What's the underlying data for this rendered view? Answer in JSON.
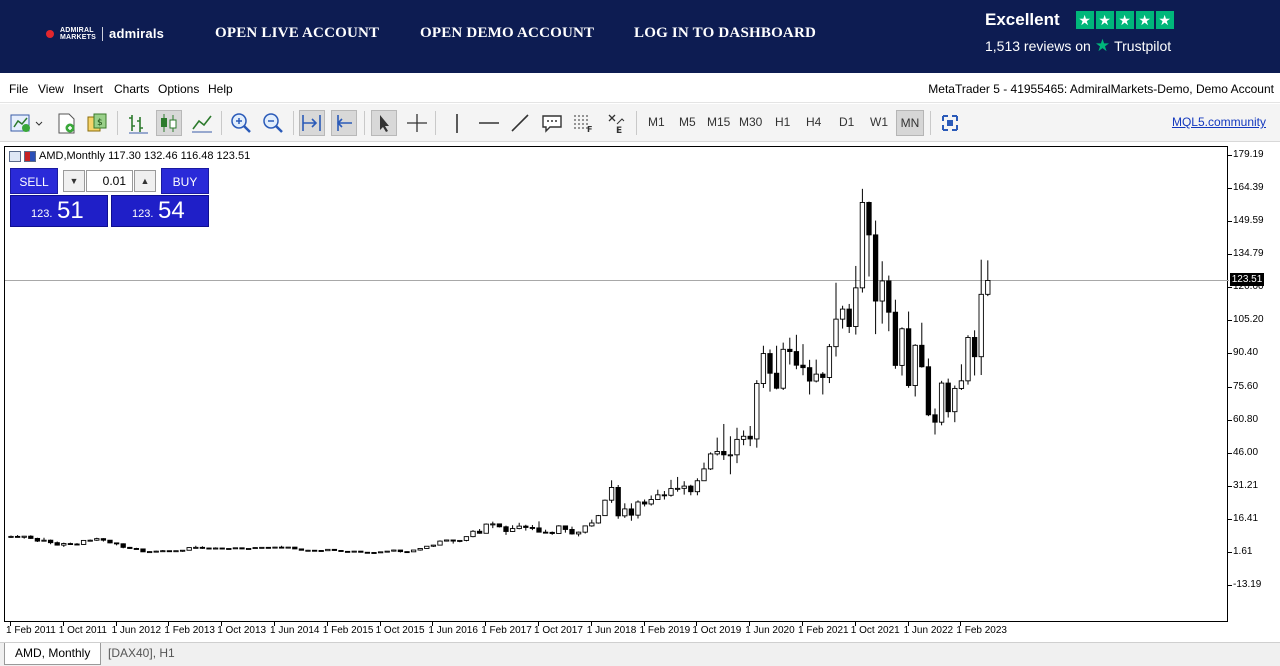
{
  "banner": {
    "logo_small_line1": "ADMIRAL",
    "logo_small_line2": "MARKETS",
    "logo_name": "admirals",
    "nav": [
      "OPEN LIVE ACCOUNT",
      "OPEN DEMO ACCOUNT",
      "LOG IN TO DASHBOARD"
    ],
    "trustpilot": {
      "rating_word": "Excellent",
      "reviews": "1,513 reviews on",
      "brand": "Trustpilot",
      "stars": 5
    },
    "bg_color": "#0d1c52"
  },
  "menu": {
    "items": [
      "File",
      "View",
      "Insert",
      "Charts",
      "Options",
      "Help"
    ],
    "terminal_title": "MetaTrader 5 - 41955465: AdmiralMarkets-Demo, Demo Account"
  },
  "toolbar": {
    "timeframes": [
      "M1",
      "M5",
      "M15",
      "M30",
      "H1",
      "H4",
      "D1",
      "W1",
      "MN"
    ],
    "selected_timeframe": "MN",
    "community_link": "MQL5.community"
  },
  "chart": {
    "header": "AMD,Monthly  117.30 132.46 116.48 123.51",
    "trade": {
      "sell_label": "SELL",
      "buy_label": "BUY",
      "volume": "0.01",
      "bid_prefix": "123.",
      "bid_big": "51",
      "ask_prefix": "123.",
      "ask_big": "54"
    },
    "current_price_label": "123.51",
    "price_axis": [
      "179.19",
      "164.39",
      "149.59",
      "134.79",
      "120.00",
      "105.20",
      "90.40",
      "75.60",
      "60.80",
      "46.00",
      "31.21",
      "16.41",
      "1.61",
      "-13.19"
    ],
    "date_axis": [
      "1 Feb 2011",
      "1 Oct 2011",
      "1 Jun 2012",
      "1 Feb 2013",
      "1 Oct 2013",
      "1 Jun 2014",
      "1 Feb 2015",
      "1 Oct 2015",
      "1 Jun 2016",
      "1 Feb 2017",
      "1 Oct 2017",
      "1 Jun 2018",
      "1 Feb 2019",
      "1 Oct 2019",
      "1 Jun 2020",
      "1 Feb 2021",
      "1 Oct 2021",
      "1 Jun 2022",
      "1 Feb 2023"
    ]
  },
  "chart_data": {
    "type": "candlestick",
    "symbol": "AMD",
    "timeframe": "Monthly",
    "y_range": [
      -13.19,
      179.19
    ],
    "current_price": 123.51,
    "ohlc": [
      {
        "d": "2011-02",
        "o": 8.9,
        "h": 9.4,
        "l": 8.4,
        "c": 9.0
      },
      {
        "d": "2011-03",
        "o": 9.0,
        "h": 9.6,
        "l": 8.5,
        "c": 8.6
      },
      {
        "d": "2011-04",
        "o": 8.6,
        "h": 9.2,
        "l": 8.0,
        "c": 9.1
      },
      {
        "d": "2011-05",
        "o": 9.1,
        "h": 9.5,
        "l": 7.9,
        "c": 8.1
      },
      {
        "d": "2011-06",
        "o": 8.1,
        "h": 8.4,
        "l": 6.5,
        "c": 6.9
      },
      {
        "d": "2011-07",
        "o": 6.9,
        "h": 8.4,
        "l": 6.7,
        "c": 7.3
      },
      {
        "d": "2011-08",
        "o": 7.3,
        "h": 7.6,
        "l": 5.5,
        "c": 6.2
      },
      {
        "d": "2011-09",
        "o": 6.2,
        "h": 6.7,
        "l": 4.9,
        "c": 5.1
      },
      {
        "d": "2011-10",
        "o": 5.1,
        "h": 6.2,
        "l": 4.3,
        "c": 5.8
      },
      {
        "d": "2011-11",
        "o": 5.8,
        "h": 6.2,
        "l": 5.2,
        "c": 5.6
      },
      {
        "d": "2011-12",
        "o": 5.6,
        "h": 6.0,
        "l": 5.2,
        "c": 5.4
      },
      {
        "d": "2012-01",
        "o": 5.4,
        "h": 7.4,
        "l": 5.3,
        "c": 7.2
      },
      {
        "d": "2012-02",
        "o": 7.2,
        "h": 7.6,
        "l": 6.7,
        "c": 7.3
      },
      {
        "d": "2012-03",
        "o": 7.3,
        "h": 8.4,
        "l": 7.0,
        "c": 8.0
      },
      {
        "d": "2012-04",
        "o": 8.0,
        "h": 8.2,
        "l": 6.7,
        "c": 7.3
      },
      {
        "d": "2012-05",
        "o": 7.3,
        "h": 7.4,
        "l": 5.9,
        "c": 6.1
      },
      {
        "d": "2012-06",
        "o": 6.1,
        "h": 6.1,
        "l": 5.0,
        "c": 5.7
      },
      {
        "d": "2012-07",
        "o": 5.7,
        "h": 5.9,
        "l": 3.7,
        "c": 4.1
      },
      {
        "d": "2012-08",
        "o": 4.1,
        "h": 4.3,
        "l": 3.4,
        "c": 3.6
      },
      {
        "d": "2012-09",
        "o": 3.6,
        "h": 3.9,
        "l": 3.3,
        "c": 3.4
      },
      {
        "d": "2012-10",
        "o": 3.4,
        "h": 3.5,
        "l": 2.0,
        "c": 2.1
      },
      {
        "d": "2012-11",
        "o": 2.1,
        "h": 2.3,
        "l": 1.8,
        "c": 2.2
      },
      {
        "d": "2012-12",
        "o": 2.2,
        "h": 2.6,
        "l": 1.9,
        "c": 2.4
      },
      {
        "d": "2013-01",
        "o": 2.4,
        "h": 2.9,
        "l": 2.4,
        "c": 2.6
      },
      {
        "d": "2013-02",
        "o": 2.6,
        "h": 2.7,
        "l": 2.3,
        "c": 2.5
      },
      {
        "d": "2013-03",
        "o": 2.5,
        "h": 2.7,
        "l": 2.4,
        "c": 2.6
      },
      {
        "d": "2013-04",
        "o": 2.6,
        "h": 2.9,
        "l": 2.1,
        "c": 2.8
      },
      {
        "d": "2013-05",
        "o": 2.8,
        "h": 4.1,
        "l": 2.8,
        "c": 4.0
      },
      {
        "d": "2013-06",
        "o": 4.0,
        "h": 4.8,
        "l": 3.7,
        "c": 4.1
      },
      {
        "d": "2013-07",
        "o": 4.1,
        "h": 4.6,
        "l": 3.4,
        "c": 3.8
      },
      {
        "d": "2013-08",
        "o": 3.8,
        "h": 3.9,
        "l": 3.2,
        "c": 3.4
      },
      {
        "d": "2013-09",
        "o": 3.4,
        "h": 4.1,
        "l": 3.3,
        "c": 3.8
      },
      {
        "d": "2013-10",
        "o": 3.8,
        "h": 3.9,
        "l": 3.2,
        "c": 3.4
      },
      {
        "d": "2013-11",
        "o": 3.4,
        "h": 3.8,
        "l": 3.3,
        "c": 3.6
      },
      {
        "d": "2013-12",
        "o": 3.6,
        "h": 3.9,
        "l": 3.5,
        "c": 3.9
      },
      {
        "d": "2014-01",
        "o": 3.9,
        "h": 4.0,
        "l": 3.3,
        "c": 3.4
      },
      {
        "d": "2014-02",
        "o": 3.4,
        "h": 3.7,
        "l": 3.3,
        "c": 3.6
      },
      {
        "d": "2014-03",
        "o": 3.6,
        "h": 4.1,
        "l": 3.6,
        "c": 4.0
      },
      {
        "d": "2014-04",
        "o": 4.0,
        "h": 4.2,
        "l": 3.7,
        "c": 4.1
      },
      {
        "d": "2014-05",
        "o": 4.1,
        "h": 4.2,
        "l": 3.8,
        "c": 4.0
      },
      {
        "d": "2014-06",
        "o": 4.0,
        "h": 4.3,
        "l": 3.9,
        "c": 4.2
      },
      {
        "d": "2014-07",
        "o": 4.2,
        "h": 4.8,
        "l": 3.8,
        "c": 3.9
      },
      {
        "d": "2014-08",
        "o": 3.9,
        "h": 4.2,
        "l": 3.8,
        "c": 4.2
      },
      {
        "d": "2014-09",
        "o": 4.2,
        "h": 4.3,
        "l": 3.4,
        "c": 3.4
      },
      {
        "d": "2014-10",
        "o": 3.4,
        "h": 3.4,
        "l": 2.7,
        "c": 2.8
      },
      {
        "d": "2014-11",
        "o": 2.8,
        "h": 3.0,
        "l": 2.6,
        "c": 2.8
      },
      {
        "d": "2014-12",
        "o": 2.8,
        "h": 2.9,
        "l": 2.5,
        "c": 2.7
      },
      {
        "d": "2015-01",
        "o": 2.7,
        "h": 2.7,
        "l": 2.5,
        "c": 2.6
      },
      {
        "d": "2015-02",
        "o": 2.6,
        "h": 3.3,
        "l": 2.6,
        "c": 3.2
      },
      {
        "d": "2015-03",
        "o": 3.2,
        "h": 3.3,
        "l": 2.6,
        "c": 2.7
      },
      {
        "d": "2015-04",
        "o": 2.7,
        "h": 2.8,
        "l": 2.2,
        "c": 2.3
      },
      {
        "d": "2015-05",
        "o": 2.3,
        "h": 2.4,
        "l": 2.1,
        "c": 2.2
      },
      {
        "d": "2015-06",
        "o": 2.2,
        "h": 2.5,
        "l": 2.0,
        "c": 2.4
      },
      {
        "d": "2015-07",
        "o": 2.4,
        "h": 2.4,
        "l": 1.8,
        "c": 1.9
      },
      {
        "d": "2015-08",
        "o": 1.9,
        "h": 2.0,
        "l": 1.7,
        "c": 1.8
      },
      {
        "d": "2015-09",
        "o": 1.8,
        "h": 1.9,
        "l": 1.6,
        "c": 1.7
      },
      {
        "d": "2015-10",
        "o": 1.7,
        "h": 2.2,
        "l": 1.7,
        "c": 2.1
      },
      {
        "d": "2015-11",
        "o": 2.1,
        "h": 2.4,
        "l": 2.0,
        "c": 2.4
      },
      {
        "d": "2015-12",
        "o": 2.4,
        "h": 3.1,
        "l": 2.2,
        "c": 2.9
      },
      {
        "d": "2016-01",
        "o": 2.9,
        "h": 2.9,
        "l": 1.8,
        "c": 2.2
      },
      {
        "d": "2016-02",
        "o": 2.2,
        "h": 2.3,
        "l": 1.8,
        "c": 2.1
      },
      {
        "d": "2016-03",
        "o": 2.1,
        "h": 2.9,
        "l": 2.1,
        "c": 2.9
      },
      {
        "d": "2016-04",
        "o": 2.9,
        "h": 3.6,
        "l": 2.6,
        "c": 3.6
      },
      {
        "d": "2016-05",
        "o": 3.6,
        "h": 4.6,
        "l": 3.5,
        "c": 4.6
      },
      {
        "d": "2016-06",
        "o": 4.6,
        "h": 5.2,
        "l": 4.3,
        "c": 5.1
      },
      {
        "d": "2016-07",
        "o": 5.1,
        "h": 7.2,
        "l": 5.0,
        "c": 6.9
      },
      {
        "d": "2016-08",
        "o": 6.9,
        "h": 7.6,
        "l": 6.7,
        "c": 7.4
      },
      {
        "d": "2016-09",
        "o": 7.4,
        "h": 7.4,
        "l": 5.8,
        "c": 6.9
      },
      {
        "d": "2016-10",
        "o": 6.9,
        "h": 7.3,
        "l": 6.4,
        "c": 7.2
      },
      {
        "d": "2016-11",
        "o": 7.2,
        "h": 9.0,
        "l": 6.8,
        "c": 8.9
      },
      {
        "d": "2016-12",
        "o": 8.9,
        "h": 11.8,
        "l": 8.6,
        "c": 11.3
      },
      {
        "d": "2017-01",
        "o": 11.3,
        "h": 12.3,
        "l": 10.2,
        "c": 10.4
      },
      {
        "d": "2017-02",
        "o": 10.4,
        "h": 14.8,
        "l": 10.3,
        "c": 14.5
      },
      {
        "d": "2017-03",
        "o": 14.5,
        "h": 15.6,
        "l": 12.7,
        "c": 14.6
      },
      {
        "d": "2017-04",
        "o": 14.6,
        "h": 14.7,
        "l": 13.0,
        "c": 13.3
      },
      {
        "d": "2017-05",
        "o": 13.3,
        "h": 13.8,
        "l": 9.7,
        "c": 11.2
      },
      {
        "d": "2017-06",
        "o": 11.2,
        "h": 14.0,
        "l": 11.0,
        "c": 12.5
      },
      {
        "d": "2017-07",
        "o": 12.5,
        "h": 15.1,
        "l": 12.2,
        "c": 13.6
      },
      {
        "d": "2017-08",
        "o": 13.6,
        "h": 14.2,
        "l": 11.6,
        "c": 13.0
      },
      {
        "d": "2017-09",
        "o": 13.0,
        "h": 14.1,
        "l": 11.8,
        "c": 12.8
      },
      {
        "d": "2017-10",
        "o": 12.8,
        "h": 15.7,
        "l": 10.8,
        "c": 10.9
      },
      {
        "d": "2017-11",
        "o": 10.9,
        "h": 12.0,
        "l": 10.3,
        "c": 10.8
      },
      {
        "d": "2017-12",
        "o": 10.8,
        "h": 11.2,
        "l": 9.7,
        "c": 10.3
      },
      {
        "d": "2018-01",
        "o": 10.3,
        "h": 14.0,
        "l": 10.3,
        "c": 13.7
      },
      {
        "d": "2018-02",
        "o": 13.7,
        "h": 13.8,
        "l": 10.7,
        "c": 12.1
      },
      {
        "d": "2018-03",
        "o": 12.1,
        "h": 13.4,
        "l": 9.8,
        "c": 10.1
      },
      {
        "d": "2018-04",
        "o": 10.1,
        "h": 11.2,
        "l": 9.0,
        "c": 10.9
      },
      {
        "d": "2018-05",
        "o": 10.9,
        "h": 13.8,
        "l": 10.3,
        "c": 13.7
      },
      {
        "d": "2018-06",
        "o": 13.7,
        "h": 16.5,
        "l": 13.3,
        "c": 15.0
      },
      {
        "d": "2018-07",
        "o": 15.0,
        "h": 18.6,
        "l": 14.7,
        "c": 18.3
      },
      {
        "d": "2018-08",
        "o": 18.3,
        "h": 25.5,
        "l": 18.1,
        "c": 25.2
      },
      {
        "d": "2018-09",
        "o": 25.2,
        "h": 34.1,
        "l": 24.0,
        "c": 30.9
      },
      {
        "d": "2018-10",
        "o": 30.9,
        "h": 32.0,
        "l": 16.9,
        "c": 18.2
      },
      {
        "d": "2018-11",
        "o": 18.2,
        "h": 23.8,
        "l": 17.3,
        "c": 21.3
      },
      {
        "d": "2018-12",
        "o": 21.3,
        "h": 23.8,
        "l": 16.0,
        "c": 18.5
      },
      {
        "d": "2019-01",
        "o": 18.5,
        "h": 25.1,
        "l": 17.0,
        "c": 24.4
      },
      {
        "d": "2019-02",
        "o": 24.4,
        "h": 25.5,
        "l": 22.4,
        "c": 23.5
      },
      {
        "d": "2019-03",
        "o": 23.5,
        "h": 27.3,
        "l": 22.8,
        "c": 25.5
      },
      {
        "d": "2019-04",
        "o": 25.5,
        "h": 29.9,
        "l": 25.5,
        "c": 27.6
      },
      {
        "d": "2019-05",
        "o": 27.6,
        "h": 29.3,
        "l": 25.5,
        "c": 27.4
      },
      {
        "d": "2019-06",
        "o": 27.4,
        "h": 34.3,
        "l": 26.8,
        "c": 30.4
      },
      {
        "d": "2019-07",
        "o": 30.4,
        "h": 35.6,
        "l": 29.0,
        "c": 30.5
      },
      {
        "d": "2019-08",
        "o": 30.5,
        "h": 33.7,
        "l": 27.7,
        "c": 31.5
      },
      {
        "d": "2019-09",
        "o": 31.5,
        "h": 32.1,
        "l": 27.4,
        "c": 29.0
      },
      {
        "d": "2019-10",
        "o": 29.0,
        "h": 35.0,
        "l": 27.4,
        "c": 33.9
      },
      {
        "d": "2019-11",
        "o": 33.9,
        "h": 42.0,
        "l": 33.8,
        "c": 39.2
      },
      {
        "d": "2019-12",
        "o": 39.2,
        "h": 46.6,
        "l": 38.7,
        "c": 45.9
      },
      {
        "d": "2020-01",
        "o": 45.9,
        "h": 53.2,
        "l": 45.2,
        "c": 47.0
      },
      {
        "d": "2020-02",
        "o": 47.0,
        "h": 59.3,
        "l": 43.2,
        "c": 45.5
      },
      {
        "d": "2020-03",
        "o": 45.5,
        "h": 53.8,
        "l": 36.8,
        "c": 45.5
      },
      {
        "d": "2020-04",
        "o": 45.5,
        "h": 57.6,
        "l": 41.8,
        "c": 52.4
      },
      {
        "d": "2020-05",
        "o": 52.4,
        "h": 56.4,
        "l": 49.8,
        "c": 53.8
      },
      {
        "d": "2020-06",
        "o": 53.8,
        "h": 58.4,
        "l": 49.4,
        "c": 52.6
      },
      {
        "d": "2020-07",
        "o": 52.6,
        "h": 78.9,
        "l": 48.7,
        "c": 77.4
      },
      {
        "d": "2020-08",
        "o": 77.4,
        "h": 94.3,
        "l": 75.4,
        "c": 90.8
      },
      {
        "d": "2020-09",
        "o": 90.8,
        "h": 92.6,
        "l": 73.8,
        "c": 82.0
      },
      {
        "d": "2020-10",
        "o": 82.0,
        "h": 94.3,
        "l": 74.8,
        "c": 75.3
      },
      {
        "d": "2020-11",
        "o": 75.3,
        "h": 95.7,
        "l": 74.5,
        "c": 92.7
      },
      {
        "d": "2020-12",
        "o": 92.7,
        "h": 97.9,
        "l": 85.9,
        "c": 91.7
      },
      {
        "d": "2021-01",
        "o": 91.7,
        "h": 99.2,
        "l": 83.8,
        "c": 85.6
      },
      {
        "d": "2021-02",
        "o": 85.6,
        "h": 95.0,
        "l": 81.1,
        "c": 84.5
      },
      {
        "d": "2021-03",
        "o": 84.5,
        "h": 88.0,
        "l": 72.5,
        "c": 78.5
      },
      {
        "d": "2021-04",
        "o": 78.5,
        "h": 88.1,
        "l": 77.9,
        "c": 81.6
      },
      {
        "d": "2021-05",
        "o": 81.6,
        "h": 82.5,
        "l": 72.5,
        "c": 80.1
      },
      {
        "d": "2021-06",
        "o": 80.1,
        "h": 95.1,
        "l": 77.6,
        "c": 93.9
      },
      {
        "d": "2021-07",
        "o": 93.9,
        "h": 122.5,
        "l": 89.5,
        "c": 106.2
      },
      {
        "d": "2021-08",
        "o": 106.2,
        "h": 112.2,
        "l": 102.0,
        "c": 110.7
      },
      {
        "d": "2021-09",
        "o": 110.7,
        "h": 113.0,
        "l": 100.0,
        "c": 102.9
      },
      {
        "d": "2021-10",
        "o": 102.9,
        "h": 130.0,
        "l": 99.3,
        "c": 120.2
      },
      {
        "d": "2021-11",
        "o": 120.2,
        "h": 164.5,
        "l": 118.1,
        "c": 158.4
      },
      {
        "d": "2021-12",
        "o": 158.4,
        "h": 158.8,
        "l": 125.3,
        "c": 143.9
      },
      {
        "d": "2022-01",
        "o": 143.9,
        "h": 150.3,
        "l": 99.5,
        "c": 114.3
      },
      {
        "d": "2022-02",
        "o": 114.3,
        "h": 132.1,
        "l": 104.2,
        "c": 123.3
      },
      {
        "d": "2022-03",
        "o": 123.3,
        "h": 125.7,
        "l": 100.8,
        "c": 109.3
      },
      {
        "d": "2022-04",
        "o": 109.3,
        "h": 114.9,
        "l": 84.0,
        "c": 85.5
      },
      {
        "d": "2022-05",
        "o": 85.5,
        "h": 102.5,
        "l": 81.0,
        "c": 101.9
      },
      {
        "d": "2022-06",
        "o": 101.9,
        "h": 109.6,
        "l": 75.5,
        "c": 76.5
      },
      {
        "d": "2022-07",
        "o": 76.5,
        "h": 95.0,
        "l": 71.6,
        "c": 94.5
      },
      {
        "d": "2022-08",
        "o": 94.5,
        "h": 104.6,
        "l": 84.5,
        "c": 84.9
      },
      {
        "d": "2022-09",
        "o": 84.9,
        "h": 88.6,
        "l": 62.8,
        "c": 63.4
      },
      {
        "d": "2022-10",
        "o": 63.4,
        "h": 66.2,
        "l": 54.6,
        "c": 60.1
      },
      {
        "d": "2022-11",
        "o": 60.1,
        "h": 78.6,
        "l": 58.7,
        "c": 77.6
      },
      {
        "d": "2022-12",
        "o": 77.6,
        "h": 79.6,
        "l": 62.2,
        "c": 64.8
      },
      {
        "d": "2023-01",
        "o": 64.8,
        "h": 76.5,
        "l": 60.1,
        "c": 75.2
      },
      {
        "d": "2023-02",
        "o": 75.2,
        "h": 86.0,
        "l": 74.5,
        "c": 78.6
      },
      {
        "d": "2023-03",
        "o": 78.6,
        "h": 99.0,
        "l": 76.9,
        "c": 98.0
      },
      {
        "d": "2023-04",
        "o": 98.0,
        "h": 101.2,
        "l": 81.0,
        "c": 89.4
      },
      {
        "d": "2023-05",
        "o": 89.4,
        "h": 132.8,
        "l": 81.2,
        "c": 117.3
      },
      {
        "d": "2023-06",
        "o": 117.3,
        "h": 132.5,
        "l": 116.5,
        "c": 123.5
      }
    ]
  },
  "tabs": [
    {
      "label": "AMD, Monthly",
      "active": true
    },
    {
      "label": "[DAX40], H1",
      "active": false
    }
  ]
}
